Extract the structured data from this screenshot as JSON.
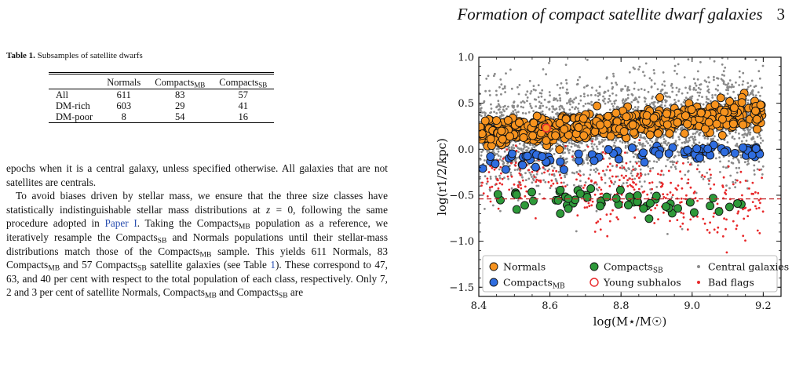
{
  "running_head": {
    "title": "Formation of compact satellite dwarf galaxies",
    "page": "3"
  },
  "table": {
    "caption_label": "Table 1.",
    "caption_text": " Subsamples of satellite dwarfs",
    "col_header_1": "Normals",
    "col_header_2_base": "Compacts",
    "col_header_2_sub": "MB",
    "col_header_3_base": "Compacts",
    "col_header_3_sub": "SB",
    "rows": [
      {
        "label": "All",
        "normals": "611",
        "compacts_mb": "83",
        "compacts_sb": "57"
      },
      {
        "label": "DM-rich",
        "normals": "603",
        "compacts_mb": "29",
        "compacts_sb": "41"
      },
      {
        "label": "DM-poor",
        "normals": "8",
        "compacts_mb": "54",
        "compacts_sb": "16"
      }
    ]
  },
  "text": {
    "p1": "epochs when it is a central galaxy, unless specified otherwise. All galaxies that are not satellites are centrals.",
    "p2_a": "To avoid biases driven by stellar mass, we ensure that the three size classes have statistically indistinguishable stellar mass distributions at ",
    "p2_z": "z",
    "p2_b": " = 0, following the same procedure adopted in ",
    "p2_link": "Paper I",
    "p2_c": ". Taking the Compacts",
    "p2_sub1": "MB",
    "p2_d": " population as a reference, we iteratively resample the Compacts",
    "p2_sub2": "SB",
    "p2_e": " and Normals populations until their stellar-mass distributions match those of the Compacts",
    "p2_sub3": "MB",
    "p2_f": " sample. This yields 611 Normals, 83 Compacts",
    "p2_sub4": "MB",
    "p2_g": " and 57 Compacts",
    "p2_sub5": "SB",
    "p2_h": " satellite galaxies (see Table ",
    "p2_tablelink": "1",
    "p2_i": "). These correspond to 47, 63, and 40 per cent with respect to the total population of each class, respectively. Only 7, 2 and 3 per cent of satellite Normals, Compacts",
    "p2_sub6": "MB",
    "p2_j": " and Compacts",
    "p2_sub7": "SB",
    "p2_k": " are"
  },
  "chart_data": {
    "type": "scatter",
    "xlabel": "log(M⋆/M☉)",
    "ylabel": "log(r1/2/kpc)",
    "xlim": [
      8.4,
      9.25
    ],
    "ylim": [
      -1.6,
      1.0
    ],
    "xticks": [
      "8.4",
      "8.6",
      "8.8",
      "9.0",
      "9.2"
    ],
    "xtick_values": [
      8.4,
      8.6,
      8.8,
      9.0,
      9.2
    ],
    "yticks": [
      "1.0",
      "0.5",
      "0.0",
      "−0.5",
      "−1.0",
      "−1.5"
    ],
    "ytick_values": [
      1.0,
      0.5,
      0.0,
      -0.5,
      -1.0,
      -1.5
    ],
    "reference_line_y": -0.54,
    "legend_position": "lower-center",
    "series": [
      {
        "name": "Central galaxies",
        "color": "#8a8a8a",
        "marker": "small-dot",
        "n": 2500,
        "trend": {
          "x0": 8.4,
          "y0": 0.12,
          "x1": 9.2,
          "y1": 0.32
        },
        "scatter": 0.28
      },
      {
        "name": "Bad flags",
        "color": "#e8282a",
        "marker": "small-dot",
        "n": 380,
        "trend": {
          "x0": 8.4,
          "y0": -0.28,
          "x1": 9.2,
          "y1": -0.58
        },
        "scatter": 0.2
      },
      {
        "name": "Normals",
        "color": "#f7931e",
        "edge": "#111111",
        "marker": "large-circle",
        "n": 611,
        "trend": {
          "x0": 8.4,
          "y0": 0.15,
          "x1": 9.2,
          "y1": 0.4
        },
        "scatter": 0.07
      },
      {
        "name": "Compacts",
        "name_sub": "MB",
        "color": "#2f6de0",
        "edge": "#111111",
        "marker": "large-circle",
        "n": 83,
        "trend": {
          "x0": 8.4,
          "y0": -0.14,
          "x1": 9.2,
          "y1": 0.0
        },
        "scatter": 0.045
      },
      {
        "name": "Compacts",
        "name_sub": "SB",
        "color": "#2e9a3a",
        "edge": "#111111",
        "marker": "large-circle",
        "n": 57,
        "trend": {
          "x0": 8.45,
          "y0": -0.5,
          "x1": 9.15,
          "y1": -0.65
        },
        "scatter": 0.07
      },
      {
        "name": "Young subhalos",
        "color": "none",
        "edge": "#e8282a",
        "marker": "open-circle",
        "points": [
          {
            "x": 8.59,
            "y": 0.23
          }
        ]
      }
    ]
  }
}
